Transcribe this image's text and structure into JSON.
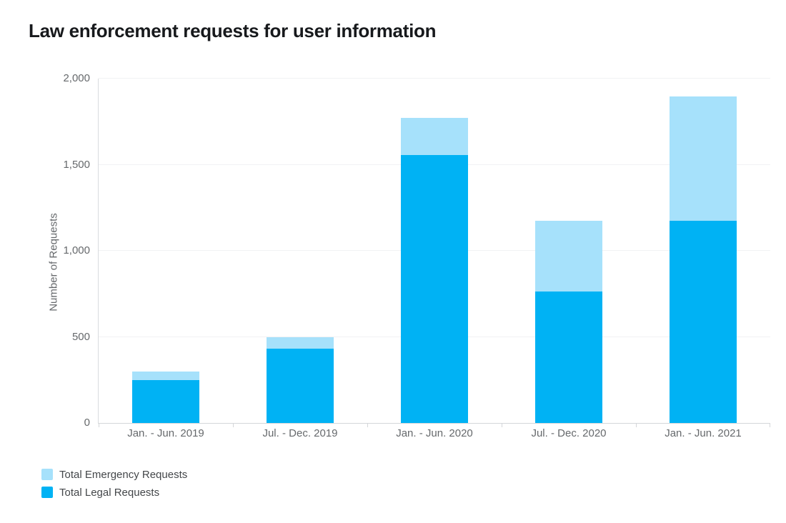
{
  "chart_data": {
    "type": "bar",
    "stacked": true,
    "title": "Law enforcement requests for user information",
    "ylabel": "Number of Requests",
    "xlabel": "",
    "ylim": [
      0,
      2000
    ],
    "yticks": [
      0,
      500,
      1000,
      1500,
      2000
    ],
    "ytick_labels": [
      "0",
      "500",
      "1,000",
      "1,500",
      "2,000"
    ],
    "categories": [
      "Jan. - Jun. 2019",
      "Jul. - Dec. 2019",
      "Jan. - Jun. 2020",
      "Jul. - Dec. 2020",
      "Jan. - Jun. 2021"
    ],
    "series": [
      {
        "name": "Total Emergency Requests",
        "color": "#a6e1fb",
        "values": [
          50,
          70,
          215,
          410,
          720
        ]
      },
      {
        "name": "Total Legal Requests",
        "color": "#00b2f4",
        "values": [
          250,
          430,
          1555,
          765,
          1175
        ]
      }
    ],
    "stack_order_bottom_to_top": [
      "Total Legal Requests",
      "Total Emergency Requests"
    ],
    "stacked_totals": [
      300,
      500,
      1770,
      1175,
      1895
    ],
    "grid": "horizontal",
    "legend_position": "bottom-left",
    "colors": {
      "legal_blue": "#00b2f4",
      "emergency_light_blue": "#a6e1fb",
      "tick_text": "#66696c",
      "title_text": "#17191c"
    }
  }
}
